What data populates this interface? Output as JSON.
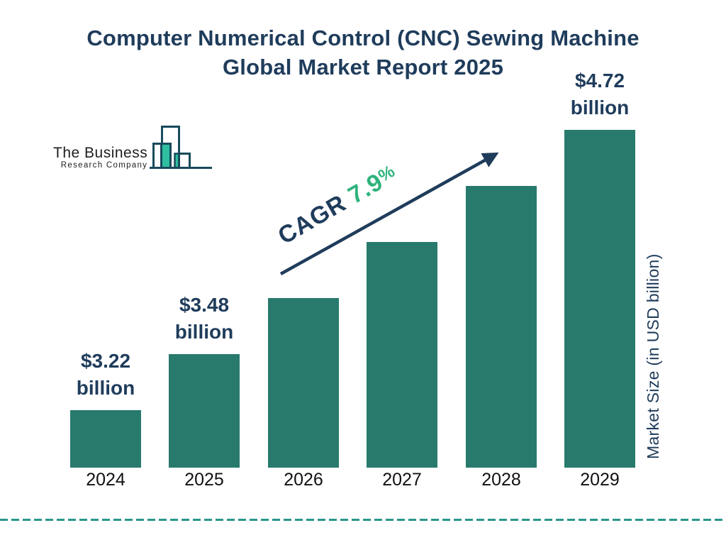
{
  "title": {
    "line1": "Computer Numerical Control (CNC) Sewing Machine",
    "line2": "Global Market Report 2025"
  },
  "logo": {
    "line1": "The Business",
    "line2": "Research Company"
  },
  "cagr": {
    "prefix": "CAGR",
    "value": "7.9",
    "suffix": "%"
  },
  "y_axis_label": "Market Size (in USD billion)",
  "colors": {
    "navy": "#1F3C5B",
    "bar_teal": "#287A6D",
    "cagr_green": "#2FB37D",
    "dash_teal": "#2A968C",
    "logo_mint": "#2EBFA0",
    "logo_outline": "#174A5B",
    "year_label": "#111111"
  },
  "chart_data": {
    "type": "bar",
    "title": "Computer Numerical Control (CNC) Sewing Machine Global Market Report 2025",
    "categories": [
      "2024",
      "2025",
      "2026",
      "2027",
      "2028",
      "2029"
    ],
    "values": [
      3.22,
      3.48,
      3.76,
      4.05,
      4.37,
      4.72
    ],
    "values_estimated": [
      false,
      false,
      true,
      true,
      true,
      false
    ],
    "unit": "USD billion",
    "data_labels": [
      {
        "value": "$3.22",
        "unit": "billion"
      },
      {
        "value": "$3.48",
        "unit": "billion"
      },
      null,
      null,
      null,
      {
        "value": "$4.72",
        "unit": "billion"
      }
    ],
    "cagr": "7.9%",
    "ylabel": "Market Size (in USD billion)",
    "xlabel": "",
    "legend": false,
    "grid": false,
    "bar_color": "#287A6D"
  }
}
